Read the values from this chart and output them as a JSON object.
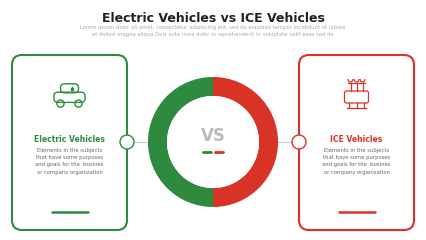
{
  "title": "Electric Vehicles vs ICE Vehicles",
  "subtitle": "Lorem ipsum dolor sit amet, consectetur adipiscing elit, sed do eiusmod tempor incididunt ut labore\net dolore magna aliqua Duis aute irure dolor in reprehenderit in voluptate velit esse sed do",
  "vs_text": "VS",
  "left_title": "Electric Vehicles",
  "left_body": "Elements in the subjects\nthat have some purposes\nand goals for the  busines\nor company organization",
  "right_title": "ICE Vehicles",
  "right_body": "Elements in the subjects\nthat have some purposes\nand goals for the  busines\nor company organization",
  "green": "#2d8a3e",
  "red": "#d93226",
  "light_gray": "#e8e8e8",
  "dark_gray": "#666666",
  "text_gray": "#999999",
  "title_color": "#222222",
  "background": "#ffffff",
  "circle_bg": "#f0f0f0",
  "vs_color": "#bbbbbb",
  "connector_color": "#cccccc",
  "figw": 4.26,
  "figh": 2.4,
  "dpi": 100
}
